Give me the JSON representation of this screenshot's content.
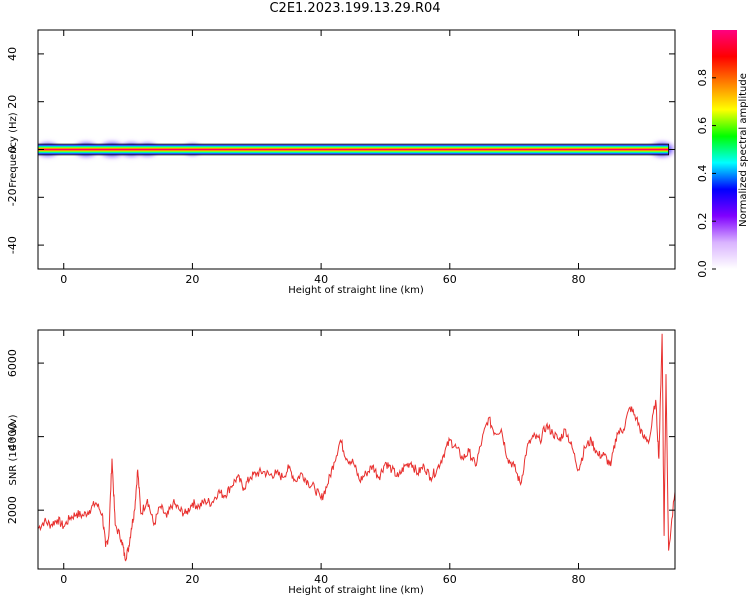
{
  "title": "C2E1.2023.199.13.29.R04",
  "chart_data": [
    {
      "type": "heatmap",
      "xlabel": "Height of straight line (km)",
      "ylabel": "Frequency (Hz)",
      "xlim": [
        -4,
        95
      ],
      "ylim": [
        -50,
        50
      ],
      "x_ticks": [
        0,
        20,
        40,
        60,
        80
      ],
      "y_ticks": [
        -40,
        -20,
        0,
        20,
        40
      ],
      "grid": false,
      "band": {
        "frequency_center": 0,
        "half_width": 1.5,
        "x_range": [
          -4,
          94
        ]
      },
      "colorbar": {
        "label": "Normalized spectral amplitude",
        "range": [
          0,
          1
        ],
        "ticks": [
          "0.0",
          "0.2",
          "0.4",
          "0.6",
          "0.8"
        ],
        "colors": [
          "#ffffff",
          "#d9b3ff",
          "#8000ff",
          "#0000ff",
          "#00ffff",
          "#00ff00",
          "#ffff00",
          "#ff8000",
          "#ff0000",
          "#ff0080"
        ]
      },
      "disturbances": [
        {
          "x": -2.5,
          "amplitude": 0.5
        },
        {
          "x": 3.5,
          "amplitude": 0.55
        },
        {
          "x": 7.5,
          "amplitude": 0.6
        },
        {
          "x": 10.5,
          "amplitude": 0.5
        },
        {
          "x": 13,
          "amplitude": 0.45
        },
        {
          "x": 20,
          "amplitude": 0.3
        },
        {
          "x": 93,
          "amplitude": 0.55
        }
      ]
    },
    {
      "type": "line",
      "xlabel": "Height of straight line (km)",
      "ylabel": "SNR (10 * v/v)",
      "xlim": [
        -4,
        95
      ],
      "ylim": [
        400,
        6900
      ],
      "x_ticks": [
        0,
        20,
        40,
        60,
        80
      ],
      "y_ticks": [
        2000,
        4000,
        6000
      ],
      "grid": false,
      "color": "#e8302e",
      "series": [
        {
          "x": [
            -4,
            -3,
            -2,
            -1,
            0,
            1,
            2,
            3,
            4,
            5,
            6,
            6.5,
            7,
            7.5,
            8,
            9,
            9.5,
            10,
            10.5,
            11,
            11.5,
            12,
            13,
            14,
            15,
            16,
            17,
            18,
            19,
            20,
            21,
            22,
            23,
            24,
            25,
            26,
            27,
            28,
            29,
            30,
            31,
            32,
            33,
            34,
            35,
            36,
            37,
            38,
            39,
            40,
            41,
            42,
            43,
            44,
            45,
            46,
            47,
            48,
            49,
            50,
            51,
            52,
            53,
            54,
            55,
            56,
            57,
            58,
            59,
            60,
            61,
            62,
            63,
            64,
            65,
            66,
            67,
            68,
            69,
            70,
            71,
            72,
            73,
            74,
            75,
            76,
            77,
            78,
            79,
            80,
            81,
            82,
            83,
            84,
            85,
            86,
            87,
            88,
            89,
            90,
            91,
            92,
            92.5,
            93,
            93.3,
            93.6,
            94,
            95
          ],
          "y": [
            1500,
            1700,
            1600,
            1750,
            1550,
            1800,
            1900,
            1850,
            2000,
            2200,
            1900,
            1000,
            1300,
            3400,
            1600,
            1200,
            700,
            900,
            1500,
            2000,
            3100,
            1900,
            2300,
            1600,
            2100,
            1800,
            2200,
            2000,
            1900,
            2200,
            2100,
            2250,
            2200,
            2500,
            2400,
            2650,
            2900,
            2600,
            2900,
            3000,
            3050,
            2950,
            3000,
            2900,
            3150,
            2800,
            3000,
            2750,
            2600,
            2300,
            2700,
            3300,
            3900,
            3400,
            3300,
            2800,
            3000,
            3200,
            2900,
            3300,
            3100,
            2900,
            3200,
            3300,
            3000,
            3200,
            2900,
            3100,
            3500,
            3900,
            3700,
            3400,
            3600,
            3200,
            3900,
            4500,
            4100,
            4200,
            3400,
            3200,
            2700,
            3700,
            4000,
            3900,
            4300,
            4100,
            3900,
            4200,
            3700,
            3100,
            3700,
            3900,
            3500,
            3500,
            3200,
            4100,
            4200,
            4800,
            4500,
            4000,
            3900,
            5000,
            3400,
            6800,
            1300,
            5700,
            900,
            2500
          ]
        }
      ]
    }
  ]
}
